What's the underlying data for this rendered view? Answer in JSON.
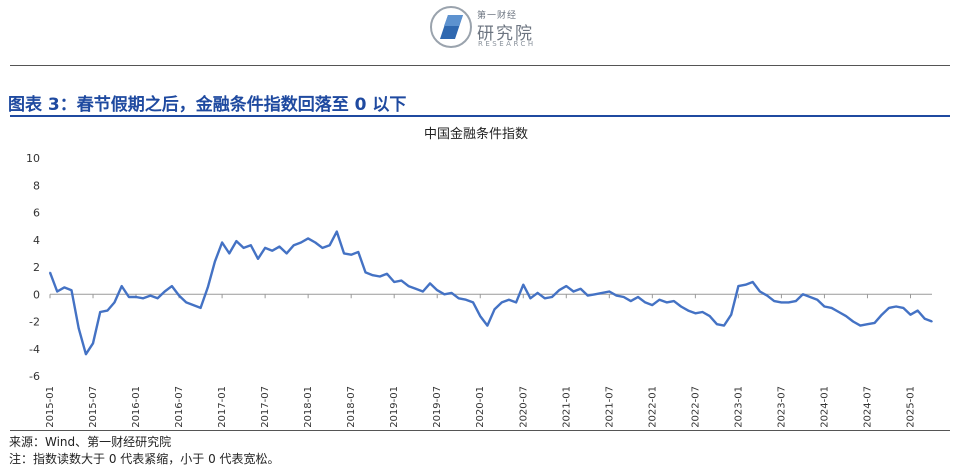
{
  "logo": {
    "name_small": "第一财经",
    "name_big": "研究院",
    "name_en": "RESEARCH"
  },
  "figure_title": "图表 3：春节假期之后，金融条件指数回落至 0 以下",
  "notes": {
    "source": "来源：Wind、第一财经研究院",
    "note": "注：指数读数大于 0 代表紧缩，小于 0 代表宽松。"
  },
  "colors": {
    "series": "#4472c4",
    "title_blue": "#1f4aa0"
  },
  "chart_data": {
    "type": "line",
    "title": "中国金融条件指数",
    "ylim": [
      -6,
      10
    ],
    "yticks": [
      -6,
      -4,
      -2,
      0,
      2,
      4,
      6,
      8,
      10
    ],
    "xlim": [
      "2015-01",
      "2025-04"
    ],
    "xticks": [
      "2015-01",
      "2015-07",
      "2016-01",
      "2016-07",
      "2017-01",
      "2017-07",
      "2018-01",
      "2018-07",
      "2019-01",
      "2019-07",
      "2020-01",
      "2020-07",
      "2021-01",
      "2021-07",
      "2022-01",
      "2022-07",
      "2023-01",
      "2023-07",
      "2024-01",
      "2024-07",
      "2025-01"
    ],
    "grid": false,
    "legend": "none",
    "series": [
      {
        "x": [
          "2015-01",
          "2015-02",
          "2015-03",
          "2015-04",
          "2015-05",
          "2015-06",
          "2015-07",
          "2015-08",
          "2015-09",
          "2015-10",
          "2015-11",
          "2015-12",
          "2016-01",
          "2016-02",
          "2016-03",
          "2016-04",
          "2016-05",
          "2016-06",
          "2016-07",
          "2016-08",
          "2016-09",
          "2016-10",
          "2016-11",
          "2016-12",
          "2017-01",
          "2017-02",
          "2017-03",
          "2017-04",
          "2017-05",
          "2017-06",
          "2017-07",
          "2017-08",
          "2017-09",
          "2017-10",
          "2017-11",
          "2017-12",
          "2018-01",
          "2018-02",
          "2018-03",
          "2018-04",
          "2018-05",
          "2018-06",
          "2018-07",
          "2018-08",
          "2018-09",
          "2018-10",
          "2018-11",
          "2018-12",
          "2019-01",
          "2019-02",
          "2019-03",
          "2019-04",
          "2019-05",
          "2019-06",
          "2019-07",
          "2019-08",
          "2019-09",
          "2019-10",
          "2019-11",
          "2019-12",
          "2020-01",
          "2020-02",
          "2020-03",
          "2020-04",
          "2020-05",
          "2020-06",
          "2020-07",
          "2020-08",
          "2020-09",
          "2020-10",
          "2020-11",
          "2020-12",
          "2021-01",
          "2021-02",
          "2021-03",
          "2021-04",
          "2021-05",
          "2021-06",
          "2021-07",
          "2021-08",
          "2021-09",
          "2021-10",
          "2021-11",
          "2021-12",
          "2022-01",
          "2022-02",
          "2022-03",
          "2022-04",
          "2022-05",
          "2022-06",
          "2022-07",
          "2022-08",
          "2022-09",
          "2022-10",
          "2022-11",
          "2022-12",
          "2023-01",
          "2023-02",
          "2023-03",
          "2023-04",
          "2023-05",
          "2023-06",
          "2023-07",
          "2023-08",
          "2023-09",
          "2023-10",
          "2023-11",
          "2023-12",
          "2024-01",
          "2024-02",
          "2024-03",
          "2024-04",
          "2024-05",
          "2024-06",
          "2024-07",
          "2024-08",
          "2024-09",
          "2024-10",
          "2024-11",
          "2024-12",
          "2025-01",
          "2025-02",
          "2025-03",
          "2025-04"
        ],
        "values": [
          1.6,
          0.2,
          0.5,
          0.3,
          -2.5,
          -4.4,
          -3.6,
          -1.3,
          -1.2,
          -0.6,
          0.6,
          -0.2,
          -0.2,
          -0.3,
          -0.1,
          -0.3,
          0.2,
          0.6,
          -0.1,
          -0.6,
          -0.8,
          -1.0,
          0.5,
          2.4,
          3.8,
          3.0,
          3.9,
          3.4,
          3.6,
          2.6,
          3.4,
          3.2,
          3.5,
          3.0,
          3.6,
          3.8,
          4.1,
          3.8,
          3.4,
          3.6,
          4.6,
          3.0,
          2.9,
          3.1,
          1.6,
          1.4,
          1.3,
          1.5,
          0.9,
          1.0,
          0.6,
          0.4,
          0.2,
          0.8,
          0.3,
          0.0,
          0.1,
          -0.3,
          -0.4,
          -0.6,
          -1.6,
          -2.3,
          -1.1,
          -0.6,
          -0.4,
          -0.6,
          0.7,
          -0.3,
          0.1,
          -0.3,
          -0.2,
          0.3,
          0.6,
          0.2,
          0.4,
          -0.1,
          0.0,
          0.1,
          0.2,
          -0.1,
          -0.2,
          -0.5,
          -0.2,
          -0.6,
          -0.8,
          -0.4,
          -0.6,
          -0.5,
          -0.9,
          -1.2,
          -1.4,
          -1.3,
          -1.6,
          -2.2,
          -2.3,
          -1.5,
          0.6,
          0.7,
          0.9,
          0.2,
          -0.1,
          -0.5,
          -0.6,
          -0.6,
          -0.5,
          0.0,
          -0.2,
          -0.4,
          -0.9,
          -1.0,
          -1.3,
          -1.6,
          -2.0,
          -2.3,
          -2.2,
          -2.1,
          -1.5,
          -1.0,
          -0.9,
          -1.0,
          -1.5,
          -1.2,
          -1.8,
          -2.0
        ]
      }
    ]
  }
}
